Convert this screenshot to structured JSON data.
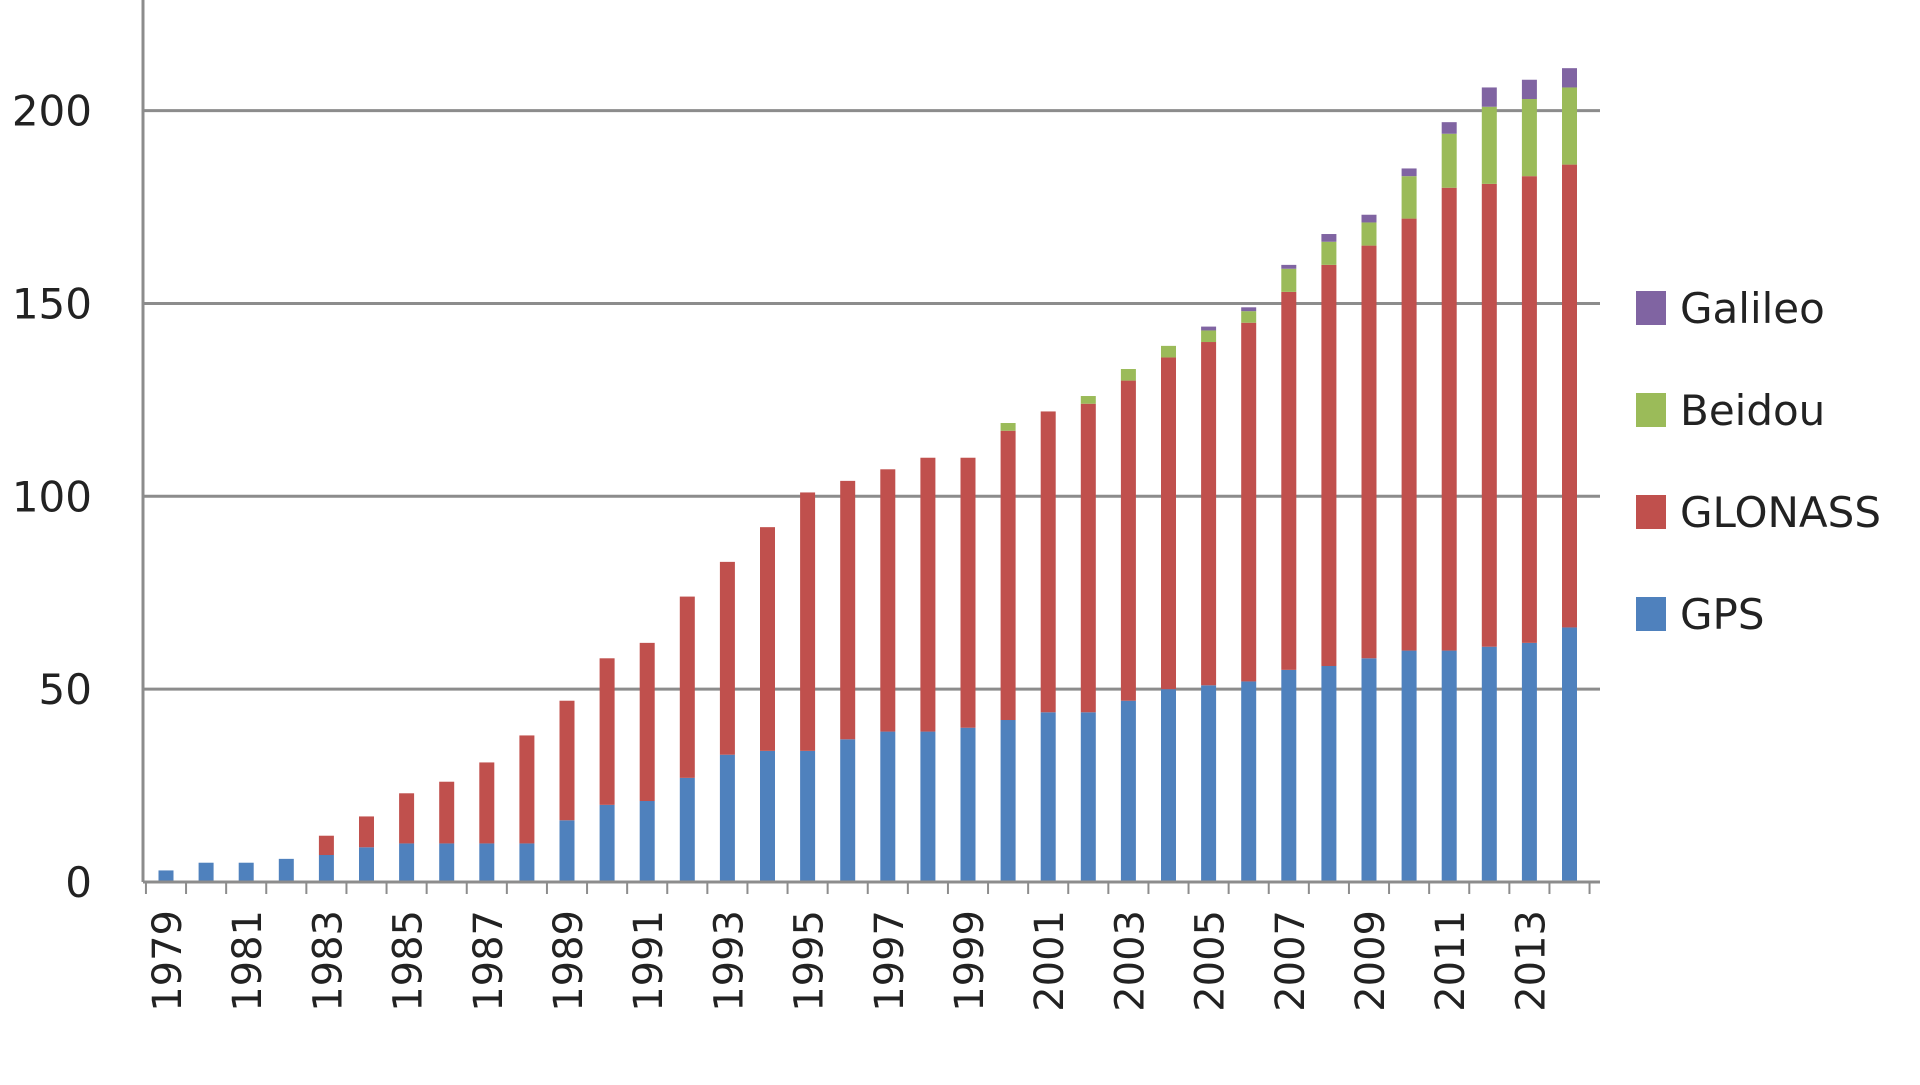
{
  "chart_data": {
    "type": "bar",
    "stacked": true,
    "title": "",
    "xlabel": "",
    "ylabel": "",
    "ylim": [
      0,
      220
    ],
    "yticks": [
      0,
      50,
      100,
      150,
      200
    ],
    "grid": true,
    "legend_position": "right",
    "categories": [
      "1979",
      "1980",
      "1981",
      "1982",
      "1983",
      "1984",
      "1985",
      "1986",
      "1987",
      "1988",
      "1989",
      "1990",
      "1991",
      "1992",
      "1993",
      "1994",
      "1995",
      "1996",
      "1997",
      "1998",
      "1999",
      "2000",
      "2001",
      "2002",
      "2003",
      "2004",
      "2005",
      "2006",
      "2007",
      "2008",
      "2009",
      "2010",
      "2011",
      "2012",
      "2013",
      "2014"
    ],
    "tick_labels": [
      "1979",
      "",
      "1981",
      "",
      "1983",
      "",
      "1985",
      "",
      "1987",
      "",
      "1989",
      "",
      "1991",
      "",
      "1993",
      "",
      "1995",
      "",
      "1997",
      "",
      "1999",
      "",
      "2001",
      "",
      "2003",
      "",
      "2005",
      "",
      "2007",
      "",
      "2009",
      "",
      "2011",
      "",
      "2013",
      ""
    ],
    "series": [
      {
        "name": "GPS",
        "color": "#4f81bd",
        "values": [
          3,
          5,
          5,
          6,
          7,
          9,
          10,
          10,
          10,
          10,
          16,
          20,
          21,
          27,
          33,
          34,
          34,
          37,
          39,
          39,
          40,
          42,
          44,
          44,
          47,
          50,
          51,
          52,
          55,
          56,
          58,
          60,
          60,
          61,
          62,
          66
        ]
      },
      {
        "name": "GLONASS",
        "color": "#c0504d",
        "values": [
          0,
          0,
          0,
          0,
          5,
          8,
          13,
          16,
          21,
          28,
          31,
          38,
          41,
          47,
          50,
          58,
          67,
          67,
          68,
          71,
          70,
          75,
          78,
          80,
          83,
          86,
          89,
          93,
          98,
          104,
          107,
          112,
          120,
          120,
          121,
          120
        ]
      },
      {
        "name": "Beidou",
        "color": "#9bbb59",
        "values": [
          0,
          0,
          0,
          0,
          0,
          0,
          0,
          0,
          0,
          0,
          0,
          0,
          0,
          0,
          0,
          0,
          0,
          0,
          0,
          0,
          0,
          2,
          0,
          2,
          3,
          3,
          3,
          3,
          6,
          6,
          6,
          11,
          14,
          20,
          20,
          20
        ]
      },
      {
        "name": "Galileo",
        "color": "#8064a2",
        "values": [
          0,
          0,
          0,
          0,
          0,
          0,
          0,
          0,
          0,
          0,
          0,
          0,
          0,
          0,
          0,
          0,
          0,
          0,
          0,
          0,
          0,
          0,
          0,
          0,
          0,
          0,
          1,
          1,
          1,
          2,
          2,
          2,
          3,
          5,
          5,
          5
        ]
      }
    ]
  }
}
